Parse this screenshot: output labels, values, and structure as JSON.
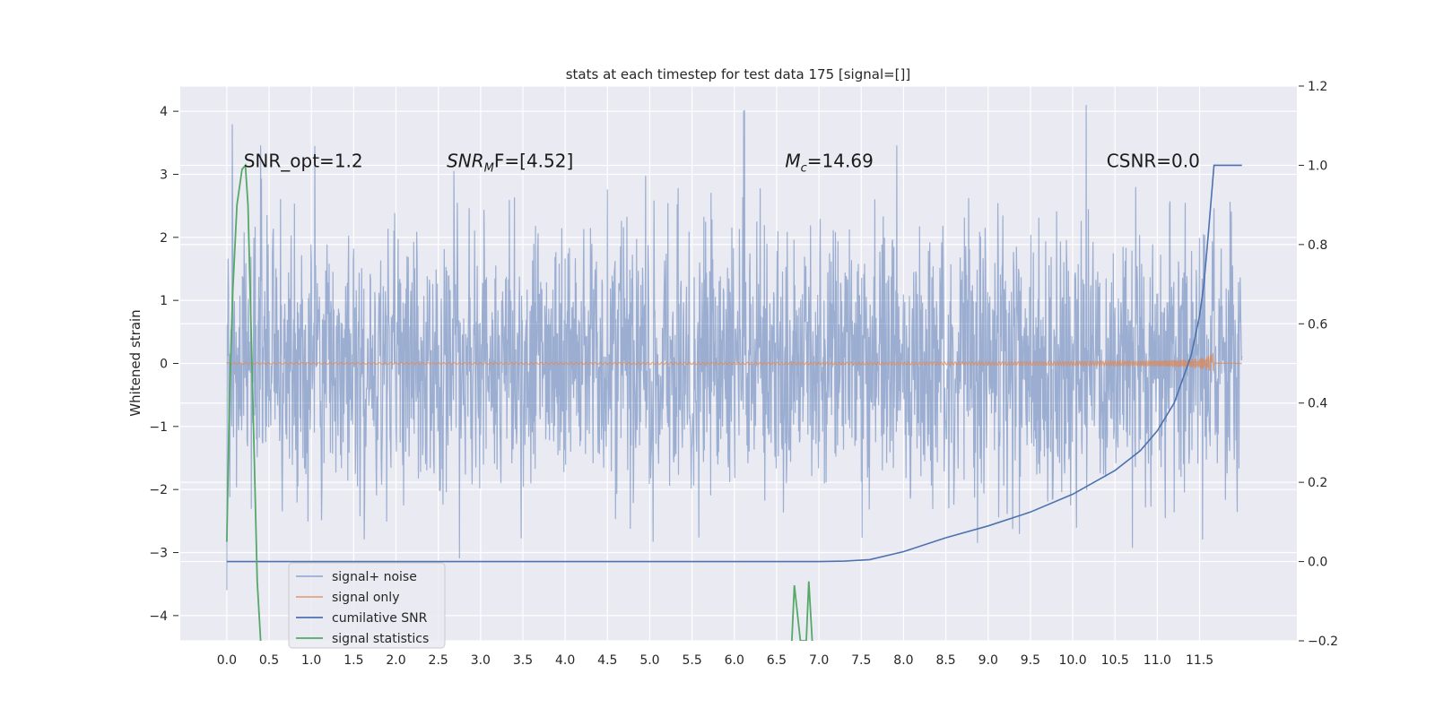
{
  "chart_data": {
    "type": "line",
    "title": "stats at each timestep for test data 175 [signal=[]]",
    "ylabel": "Whitened strain",
    "xlabel": "",
    "xlim": [
      -0.55,
      12.65
    ],
    "ylim": [
      -4.4,
      4.4
    ],
    "y2lim": [
      -0.2,
      1.2
    ],
    "x_ticks": [
      0.0,
      0.5,
      1.0,
      1.5,
      2.0,
      2.5,
      3.0,
      3.5,
      4.0,
      4.5,
      5.0,
      5.5,
      6.0,
      6.5,
      7.0,
      7.5,
      8.0,
      8.5,
      9.0,
      9.5,
      10.0,
      10.5,
      11.0,
      11.5
    ],
    "x_tick_labels": [
      "0.0",
      "0.5",
      "1.0",
      "1.5",
      "2.0",
      "2.5",
      "3.0",
      "3.5",
      "4.0",
      "4.5",
      "5.0",
      "5.5",
      "6.0",
      "6.5",
      "7.0",
      "7.5",
      "8.0",
      "8.5",
      "9.0",
      "9.5",
      "10.0",
      "10.5",
      "11.0",
      "11.5"
    ],
    "y_ticks": [
      -4,
      -3,
      -2,
      -1,
      0,
      1,
      2,
      3,
      4
    ],
    "y_tick_labels": [
      "−4",
      "−3",
      "−2",
      "−1",
      "0",
      "1",
      "2",
      "3",
      "4"
    ],
    "y2_ticks": [
      -0.2,
      0.0,
      0.2,
      0.4,
      0.6,
      0.8,
      1.0,
      1.2
    ],
    "y2_tick_labels": [
      "−0.2",
      "0.0",
      "0.2",
      "0.4",
      "0.6",
      "0.8",
      "1.0",
      "1.2"
    ],
    "grid": true,
    "legend_position": "lower-left",
    "annotations": [
      {
        "text": "SNR_opt=1.2",
        "x": 0.2,
        "y": 3.2
      },
      {
        "text": "F=[4.52]",
        "prefix": "SNR",
        "sub": "M",
        "x": 2.6,
        "y": 3.2
      },
      {
        "text": "=14.69",
        "prefix": "M",
        "sub": "c",
        "x": 6.6,
        "y": 3.2
      },
      {
        "text": "CSNR=0.0",
        "x": 10.4,
        "y": 3.2
      }
    ],
    "series": [
      {
        "name": "signal+ noise",
        "axis": "left",
        "color": "#4c72b0",
        "opacity": 0.5,
        "x_range": [
          0.0,
          12.0
        ],
        "envelope_typical": [
          -1.9,
          1.9
        ],
        "envelope_peaks": [
          -4.0,
          4.1
        ]
      },
      {
        "name": "signal only",
        "axis": "left",
        "color": "#dd8452",
        "x_range": [
          0.0,
          11.67
        ],
        "peak_amplitude_at_end": 0.2
      },
      {
        "name": "cumilative SNR",
        "axis": "right",
        "color": "#4c72b0",
        "x": [
          0.0,
          1.0,
          2.0,
          3.0,
          4.0,
          5.0,
          6.0,
          6.5,
          7.0,
          7.3,
          7.6,
          8.0,
          8.5,
          9.0,
          9.5,
          10.0,
          10.5,
          10.8,
          11.0,
          11.2,
          11.4,
          11.5,
          11.55,
          11.6,
          11.67,
          12.0
        ],
        "values": [
          0.0,
          0.0,
          0.0,
          0.0,
          0.0,
          0.0,
          0.0,
          0.0,
          0.0,
          0.001,
          0.005,
          0.025,
          0.06,
          0.09,
          0.125,
          0.17,
          0.23,
          0.28,
          0.33,
          0.4,
          0.52,
          0.62,
          0.7,
          0.82,
          1.0,
          1.0
        ]
      },
      {
        "name": "signal statistics",
        "axis": "right",
        "color": "#55a868",
        "segments": [
          {
            "x": [
              0.0,
              0.03,
              0.07,
              0.12,
              0.18,
              0.22,
              0.25,
              0.28,
              0.32,
              0.36,
              0.4
            ],
            "values": [
              0.05,
              0.4,
              0.68,
              0.9,
              0.99,
              1.0,
              0.9,
              0.65,
              0.3,
              -0.05,
              -0.2
            ]
          },
          {
            "x": [
              6.68,
              6.71,
              6.78,
              6.85,
              6.88,
              6.92
            ],
            "values": [
              -0.2,
              -0.06,
              -0.2,
              -0.2,
              -0.05,
              -0.2
            ]
          }
        ]
      }
    ]
  }
}
